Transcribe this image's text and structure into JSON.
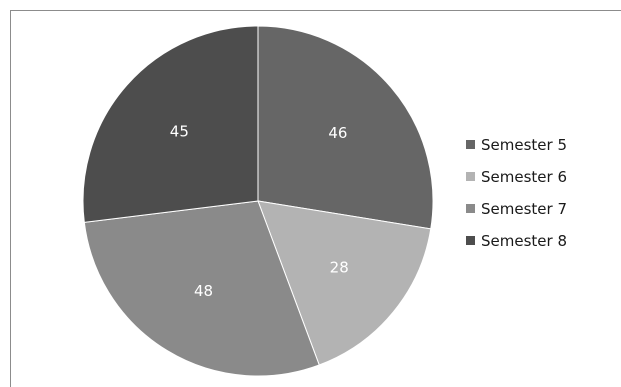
{
  "chart_data": {
    "type": "pie",
    "categories": [
      "Semester 5",
      "Semester 6",
      "Semester 7",
      "Semester 8"
    ],
    "values": [
      46,
      28,
      48,
      45
    ],
    "data_labels": [
      "46",
      "28",
      "48",
      "45"
    ],
    "colors": [
      "#666666",
      "#b3b3b3",
      "#8a8a8a",
      "#4d4d4d"
    ],
    "legend_position": "right",
    "start_angle": "12 o'clock",
    "direction": "clockwise",
    "title": ""
  }
}
